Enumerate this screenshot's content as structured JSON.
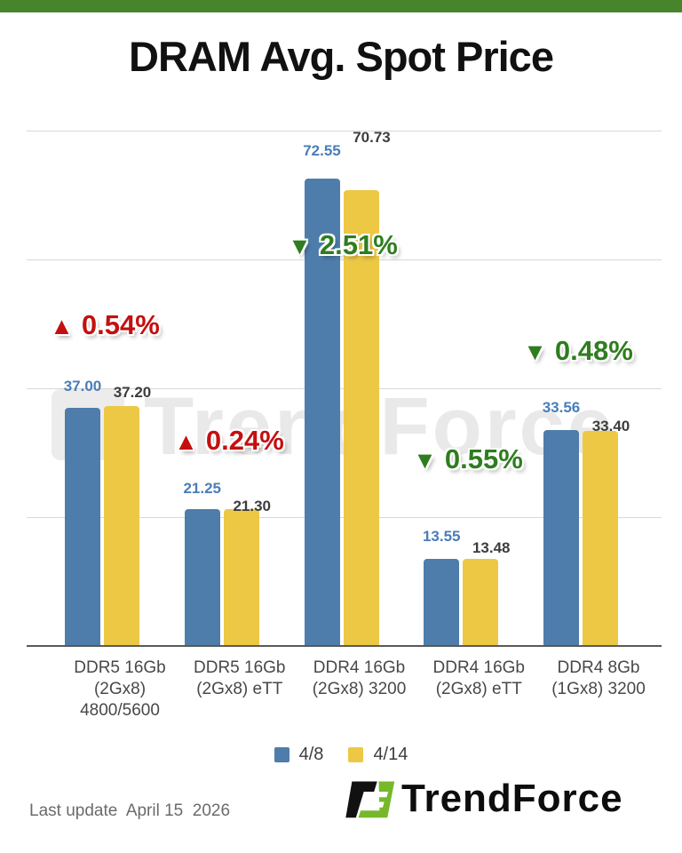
{
  "page_title": "DRAM Avg. Spot Price",
  "colors": {
    "accent_green": "#47852c",
    "bar_blue": "#4e7dab",
    "bar_yellow": "#edc845",
    "up_red": "#c3100f",
    "down_green": "#2f7d1f",
    "grid": "#d8d8d8",
    "axis_line": "#595959",
    "value_label_blue": "#4a7db8",
    "value_label_dark": "#3d3d3d",
    "watermark_gray": "#e9e9e9",
    "logo_green": "#76b82a",
    "logo_black": "#111111"
  },
  "chart_data": {
    "type": "bar",
    "title": "DRAM Avg. Spot Price",
    "categories": [
      [
        "DDR5 16Gb",
        "(2Gx8)",
        "4800/5600"
      ],
      [
        "DDR5 16Gb",
        "(2Gx8) eTT"
      ],
      [
        "DDR4 16Gb",
        "(2Gx8) 3200"
      ],
      [
        "DDR4 16Gb",
        "(2Gx8) eTT"
      ],
      [
        "DDR4 8Gb",
        "(1Gx8) 3200"
      ]
    ],
    "series": [
      {
        "name": "4/8",
        "color": "#4e7dab",
        "values": [
          37.0,
          21.25,
          72.55,
          13.55,
          33.56
        ],
        "value_labels": [
          "37.00",
          "21.25",
          "72.55",
          "13.55",
          "33.56"
        ]
      },
      {
        "name": "4/14",
        "color": "#edc845",
        "values": [
          37.2,
          21.3,
          70.73,
          13.48,
          33.4
        ],
        "value_labels": [
          "37.20",
          "21.30",
          "70.73",
          "13.48",
          "33.40"
        ]
      }
    ],
    "changes": [
      {
        "direction": "up",
        "glyph": "▲",
        "label": "0.54%"
      },
      {
        "direction": "up",
        "glyph": "▲",
        "label": "0.24%"
      },
      {
        "direction": "down",
        "glyph": "▼",
        "label": "2.51%"
      },
      {
        "direction": "down",
        "glyph": "▼",
        "label": "0.55%"
      },
      {
        "direction": "down",
        "glyph": "▼",
        "label": "0.48%"
      }
    ],
    "ylim": [
      0,
      80
    ],
    "gridline_values": [
      20,
      40,
      60,
      80
    ],
    "grid": true,
    "y_axis_labels_visible": false,
    "legend_position": "bottom-center",
    "xlabel": "",
    "ylabel": ""
  },
  "watermark": {
    "text": "TrendForce"
  },
  "footer": {
    "last_update": "Last update  April 15  2026",
    "brand_text": "TrendForce"
  }
}
